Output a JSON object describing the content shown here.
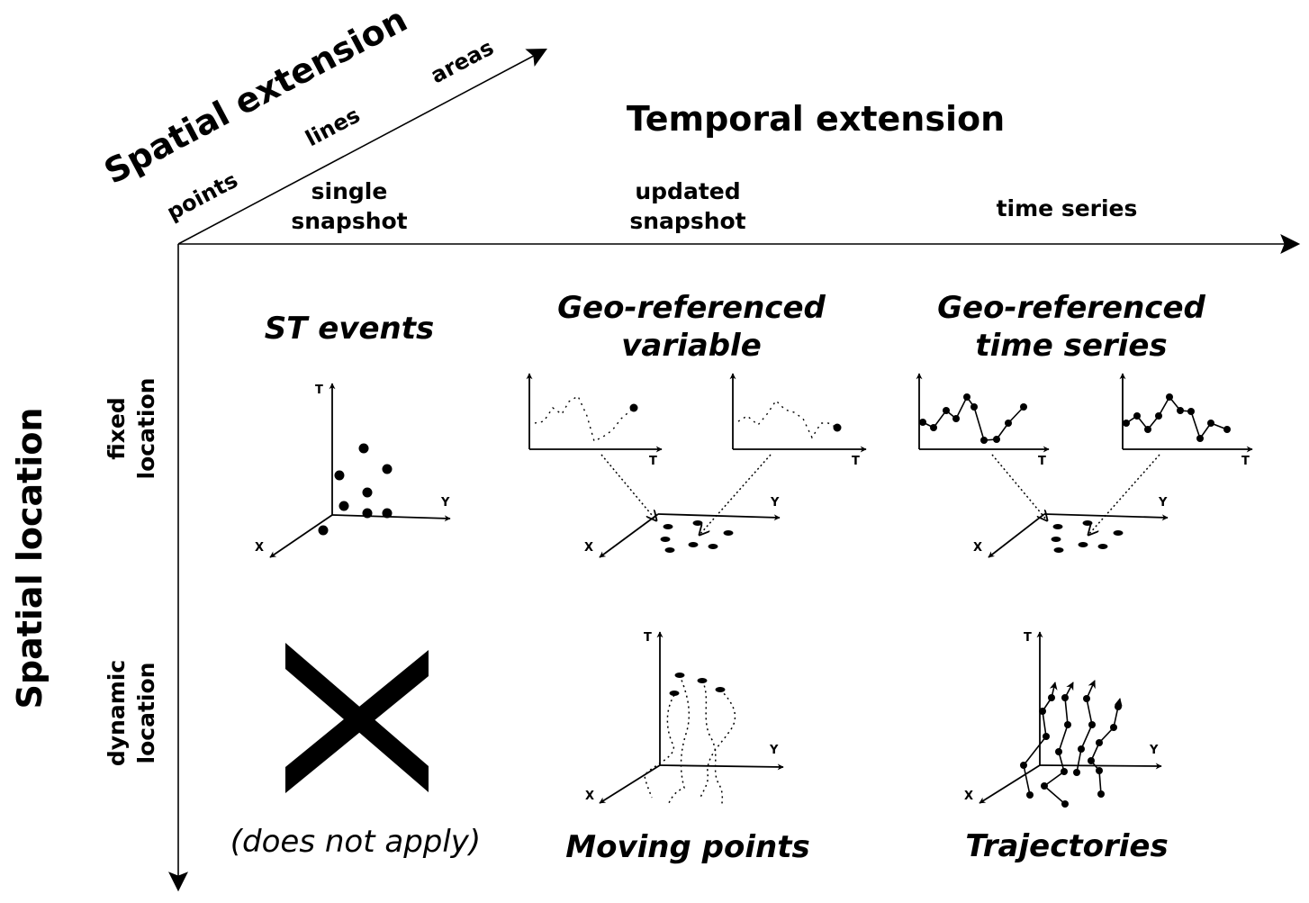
{
  "spatial_extension": {
    "title": "Spatial extension",
    "points": "points",
    "lines": "lines",
    "areas": "areas"
  },
  "temporal_extension": {
    "title": "Temporal extension",
    "single_1": "single",
    "single_2": "snapshot",
    "updated_1": "updated",
    "updated_2": "snapshot",
    "series": "time series"
  },
  "spatial_location": {
    "title": "Spatial location",
    "fixed_1": "fixed",
    "fixed_2": "location",
    "dynamic_1": "dynamic",
    "dynamic_2": "location"
  },
  "cells": {
    "st_events": "ST events",
    "geo_var_1": "Geo-referenced",
    "geo_var_2": "variable",
    "geo_ts_1": "Geo-referenced",
    "geo_ts_2": "time series",
    "not_apply": "(does not apply)",
    "moving_points": "Moving points",
    "trajectories": "Trajectories"
  },
  "axis_labels": {
    "x": "X",
    "y": "Y",
    "t": "T"
  }
}
